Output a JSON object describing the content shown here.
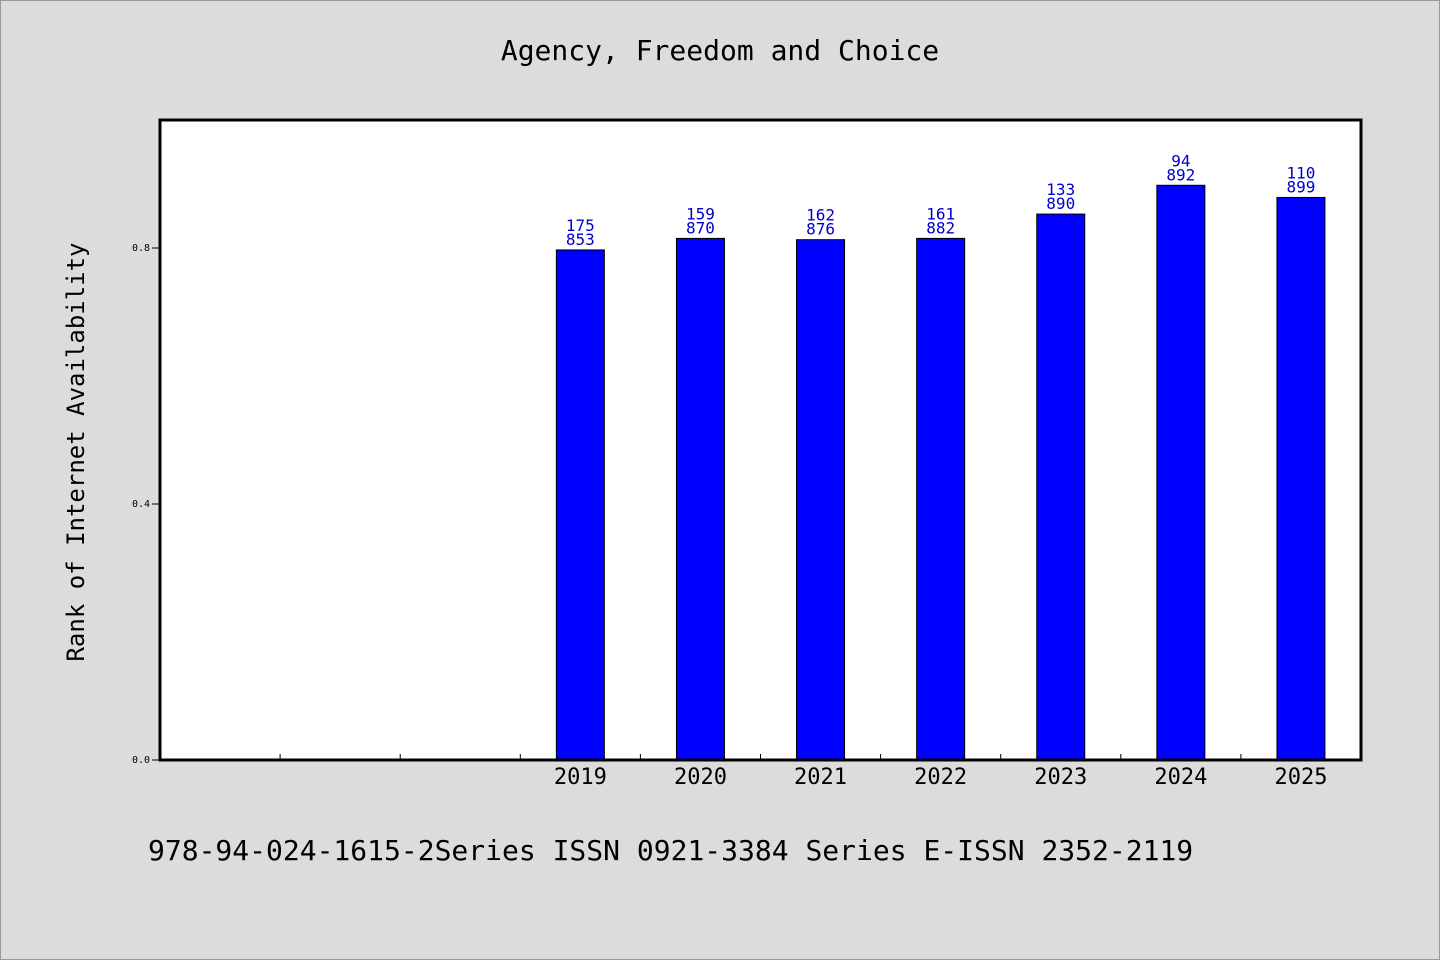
{
  "chart_data": {
    "type": "bar",
    "title": "Agency, Freedom and Choice",
    "xlabel": "",
    "ylabel": "Rank of Internet Availability",
    "categories": [
      "2019",
      "2020",
      "2021",
      "2022",
      "2023",
      "2024",
      "2025"
    ],
    "values": [
      0.797,
      0.815,
      0.813,
      0.815,
      0.853,
      0.898,
      0.879
    ],
    "bar_labels_top": [
      "175",
      "159",
      "162",
      "161",
      "133",
      "94",
      "110"
    ],
    "bar_labels_bottom": [
      "853",
      "870",
      "876",
      "882",
      "890",
      "892",
      "899"
    ],
    "empty_leading_slots": 3,
    "ylim": [
      0,
      1.0
    ],
    "yticks": [
      0.0,
      0.4,
      0.8
    ],
    "ytick_labels": [
      "0.0",
      "0.4",
      "0.8"
    ],
    "grid": false,
    "legend": "none",
    "colors": {
      "bar": "#0000ff",
      "label": "#0000cc",
      "background": "#dcdcdc",
      "plot_area": "#ffffff"
    }
  },
  "footer": {
    "text": "978-94-024-1615-2Series ISSN 0921-3384 Series E-ISSN 2352-2119"
  }
}
